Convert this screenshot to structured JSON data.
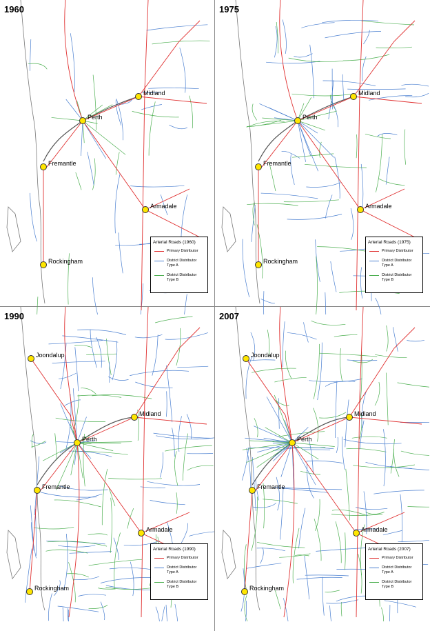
{
  "panels": [
    {
      "year": "1960",
      "cities": [
        "Midland",
        "Perth",
        "Fremantle",
        "Armadale",
        "Rockingham"
      ],
      "legend": {
        "title": "Arterial Roads (1960)",
        "items": [
          "Primary Distributor",
          "District Distributor Type A",
          "District Distributor Type B"
        ]
      }
    },
    {
      "year": "1975",
      "cities": [
        "Midland",
        "Perth",
        "Fremantle",
        "Armadale",
        "Rockingham"
      ],
      "legend": {
        "title": "Arterial Roads (1975)",
        "items": [
          "Primary Distributor",
          "District Distributor Type A",
          "District Distributor Type B"
        ]
      }
    },
    {
      "year": "1990",
      "cities": [
        "Joondalup",
        "Midland",
        "Perth",
        "Fremantle",
        "Armadale",
        "Rockingham"
      ],
      "legend": {
        "title": "Arterial Roads (1990)",
        "items": [
          "Primary Distributor",
          "District Distributor Type A",
          "District Distributor Type B"
        ]
      }
    },
    {
      "year": "2007",
      "cities": [
        "Joondalup",
        "Midland",
        "Perth",
        "Fremantle",
        "Armadale",
        "Rockingham"
      ],
      "legend": {
        "title": "Arterial Roads (2007)",
        "items": [
          "Primary Distributor",
          "District Distributor Type A",
          "District Distributor Type B"
        ]
      }
    }
  ]
}
